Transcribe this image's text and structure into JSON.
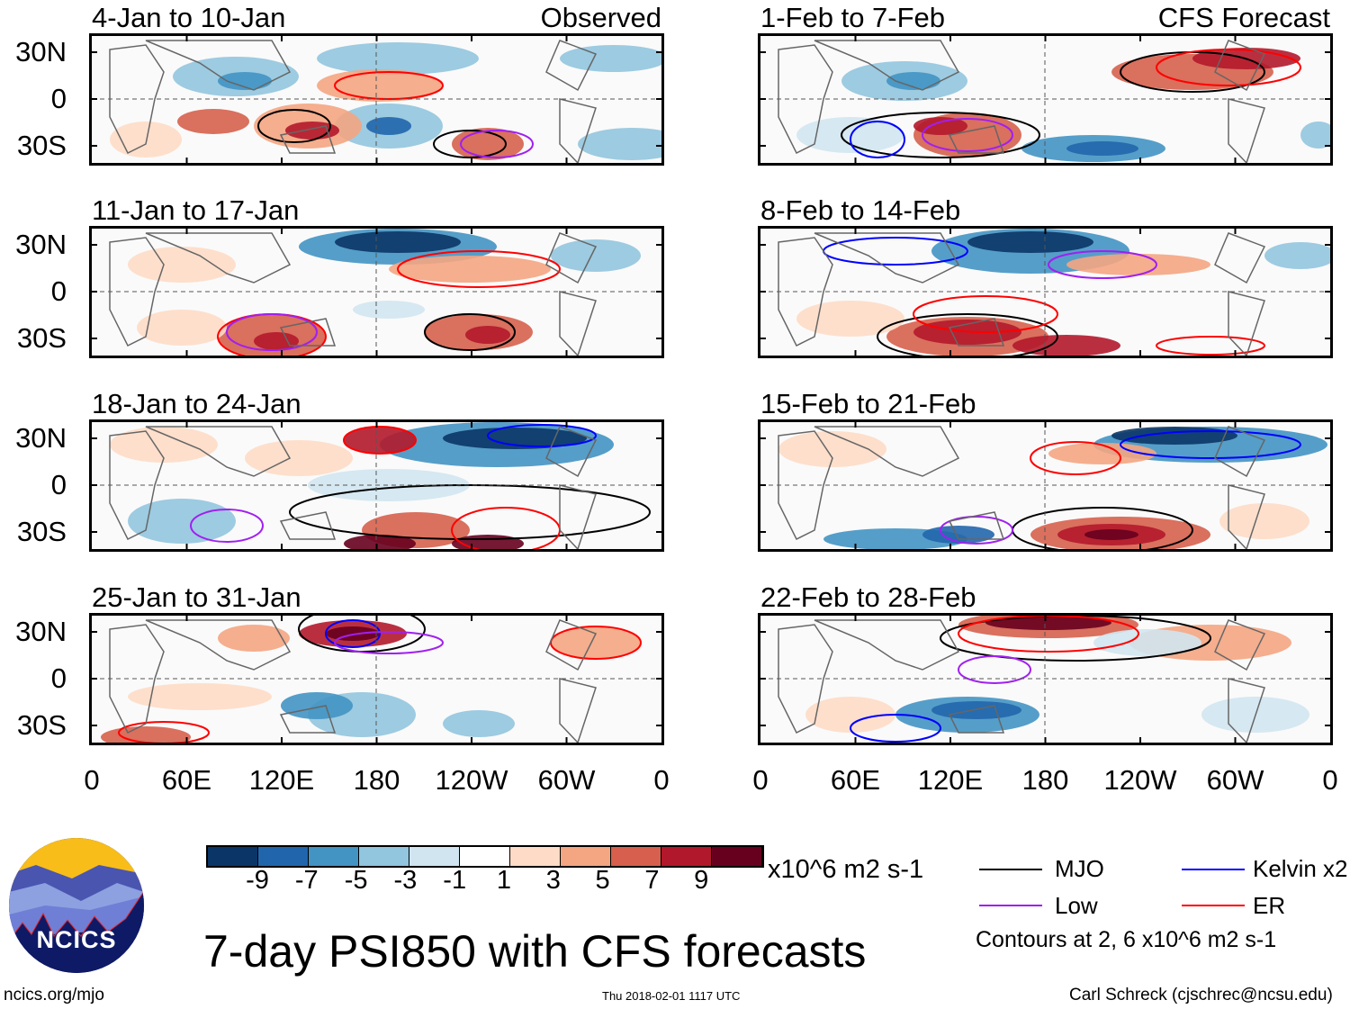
{
  "panels": [
    {
      "title": "4-Jan to 10-Jan",
      "label": "Observed"
    },
    {
      "title": "11-Jan to 17-Jan"
    },
    {
      "title": "18-Jan to 24-Jan"
    },
    {
      "title": "25-Jan to 31-Jan"
    },
    {
      "title": "1-Feb to 7-Feb",
      "label": "CFS Forecast"
    },
    {
      "title": "8-Feb to 14-Feb"
    },
    {
      "title": "15-Feb to 21-Feb"
    },
    {
      "title": "22-Feb to 28-Feb"
    }
  ],
  "lat_labels": [
    "30N",
    "0",
    "30S"
  ],
  "lon_labels": [
    "0",
    "60E",
    "120E",
    "180",
    "120W",
    "60W",
    "0"
  ],
  "colorbar": {
    "labels": [
      "-9",
      "-7",
      "-5",
      "-3",
      "-1",
      "1",
      "3",
      "5",
      "7",
      "9"
    ],
    "units": "x10^6 m2 s-1",
    "colors": [
      "#0b3566",
      "#2166ac",
      "#4393c3",
      "#92c5de",
      "#d1e5f0",
      "#ffffff",
      "#fddbc7",
      "#f4a582",
      "#d6604d",
      "#b2182b",
      "#67001f"
    ]
  },
  "legend": {
    "items": [
      {
        "label": "MJO",
        "color": "#000000"
      },
      {
        "label": "Kelvin x2",
        "color": "#0000ff"
      },
      {
        "label": "Low",
        "color": "#a020f0"
      },
      {
        "label": "ER",
        "color": "#ff0000"
      }
    ],
    "note": "Contours at 2, 6 x10^6 m2 s-1"
  },
  "title": "7-day PSI850 with CFS forecasts",
  "logo_text": "NCICS",
  "footer": {
    "left": "ncics.org/mjo",
    "center": "Thu 2018-02-01 1117 UTC",
    "right": "Carl Schreck (cjschrec@ncsu.edu)"
  }
}
